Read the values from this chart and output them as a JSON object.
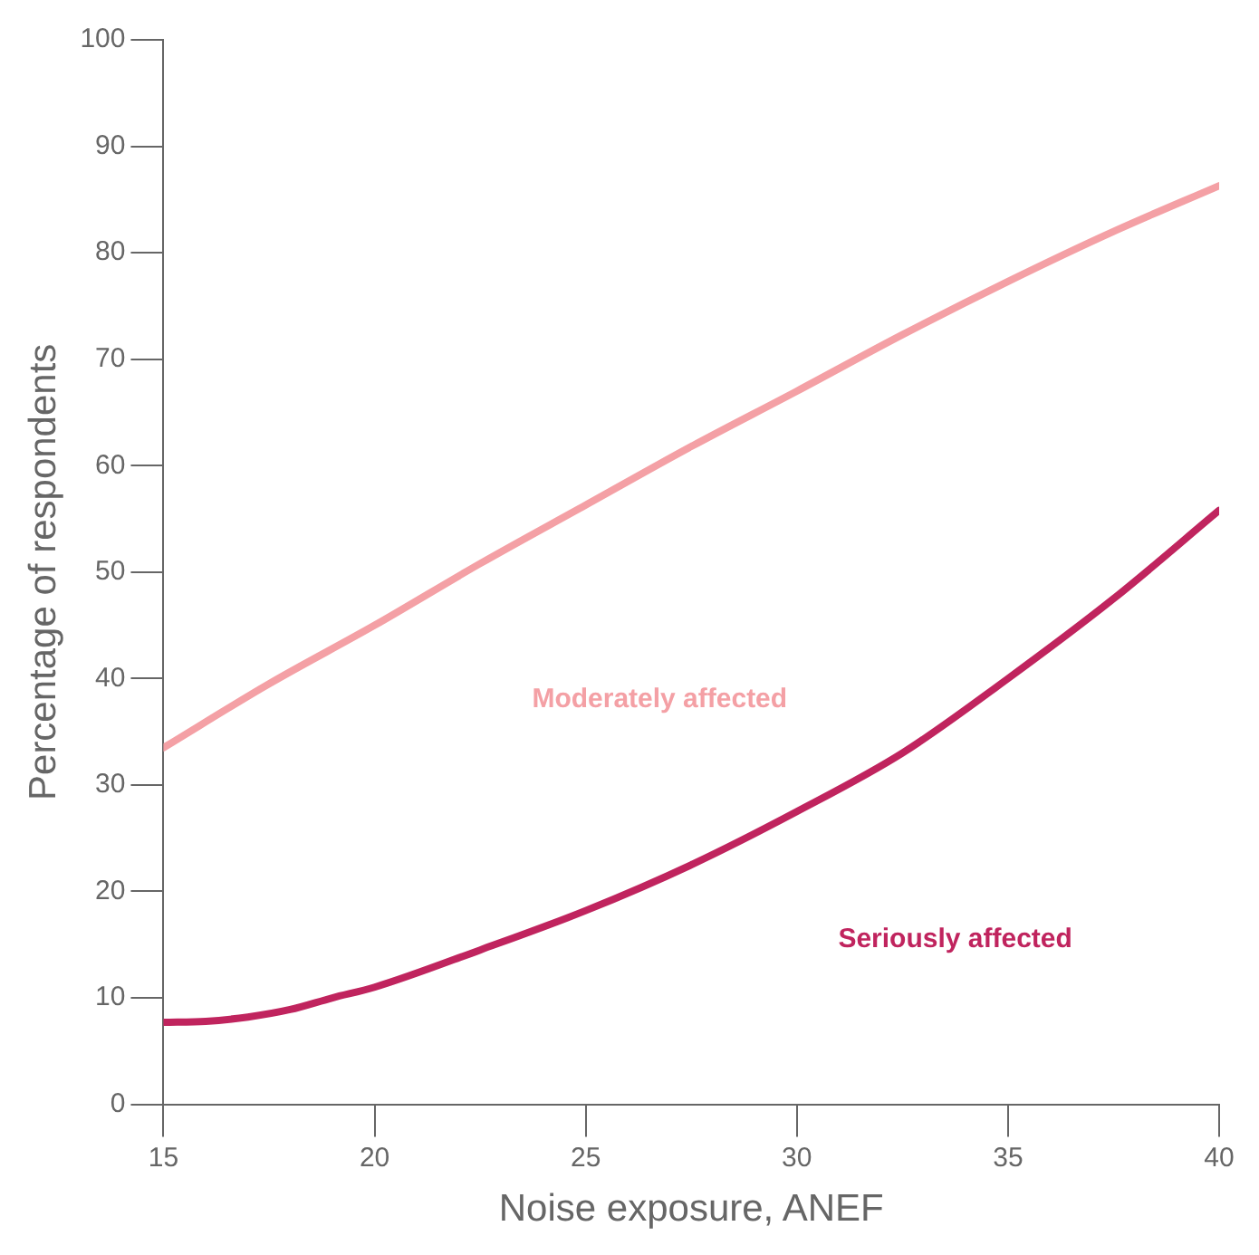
{
  "chart_data": {
    "type": "line",
    "xlabel": "Noise exposure, ANEF",
    "ylabel": "Percentage of respondents",
    "xlim": [
      15,
      40
    ],
    "xticks": [
      15,
      20,
      25,
      30,
      35,
      40
    ],
    "ylim": [
      0,
      100
    ],
    "yticks": [
      0,
      10,
      20,
      30,
      40,
      50,
      60,
      70,
      80,
      90,
      100
    ],
    "grid": false,
    "legend": false,
    "marker": "none",
    "line_style": "solid",
    "series": [
      {
        "name": "Moderately affected",
        "color": "#f4a0a5",
        "x": [
          15,
          17.5,
          20,
          22.5,
          25,
          27.5,
          30,
          32.5,
          35,
          37.5,
          40
        ],
        "values": [
          33.5,
          39.5,
          45,
          50.8,
          56.3,
          61.8,
          67,
          72.3,
          77.3,
          82,
          86.3
        ]
      },
      {
        "name": "Seriously affected",
        "color": "#c0245e",
        "x": [
          15,
          16,
          17,
          18,
          19,
          20,
          22.5,
          25,
          27.5,
          30,
          32.5,
          35,
          37.5,
          40
        ],
        "values": [
          7.7,
          7.8,
          8.2,
          8.9,
          10,
          11,
          14.5,
          18.2,
          22.5,
          27.5,
          33,
          40,
          47.5,
          55.8
        ]
      }
    ]
  }
}
